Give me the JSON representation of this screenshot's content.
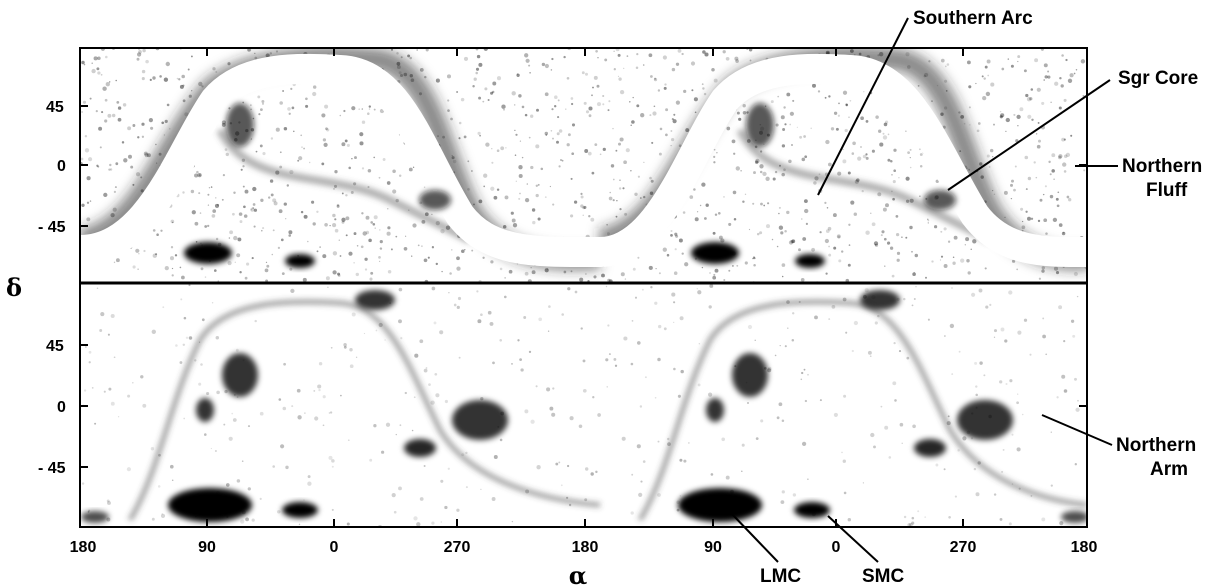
{
  "axes": {
    "x_symbol": "α",
    "y_symbol": "δ",
    "x_ticks": [
      "180",
      "90",
      "0",
      "270",
      "180",
      "90",
      "0",
      "270",
      "180"
    ],
    "y_ticks": [
      "45",
      "0",
      "- 45"
    ]
  },
  "annotations": {
    "southern_arc": "Southern Arc",
    "sgr_core": "Sgr Core",
    "northern_fluff_line1": "Northern",
    "northern_fluff_line2": "Fluff",
    "northern_arm_line1": "Northern",
    "northern_arm_line2": "Arm",
    "lmc": "LMC",
    "smc": "SMC"
  },
  "colors": {
    "ink": "#000000",
    "background": "#ffffff"
  }
}
